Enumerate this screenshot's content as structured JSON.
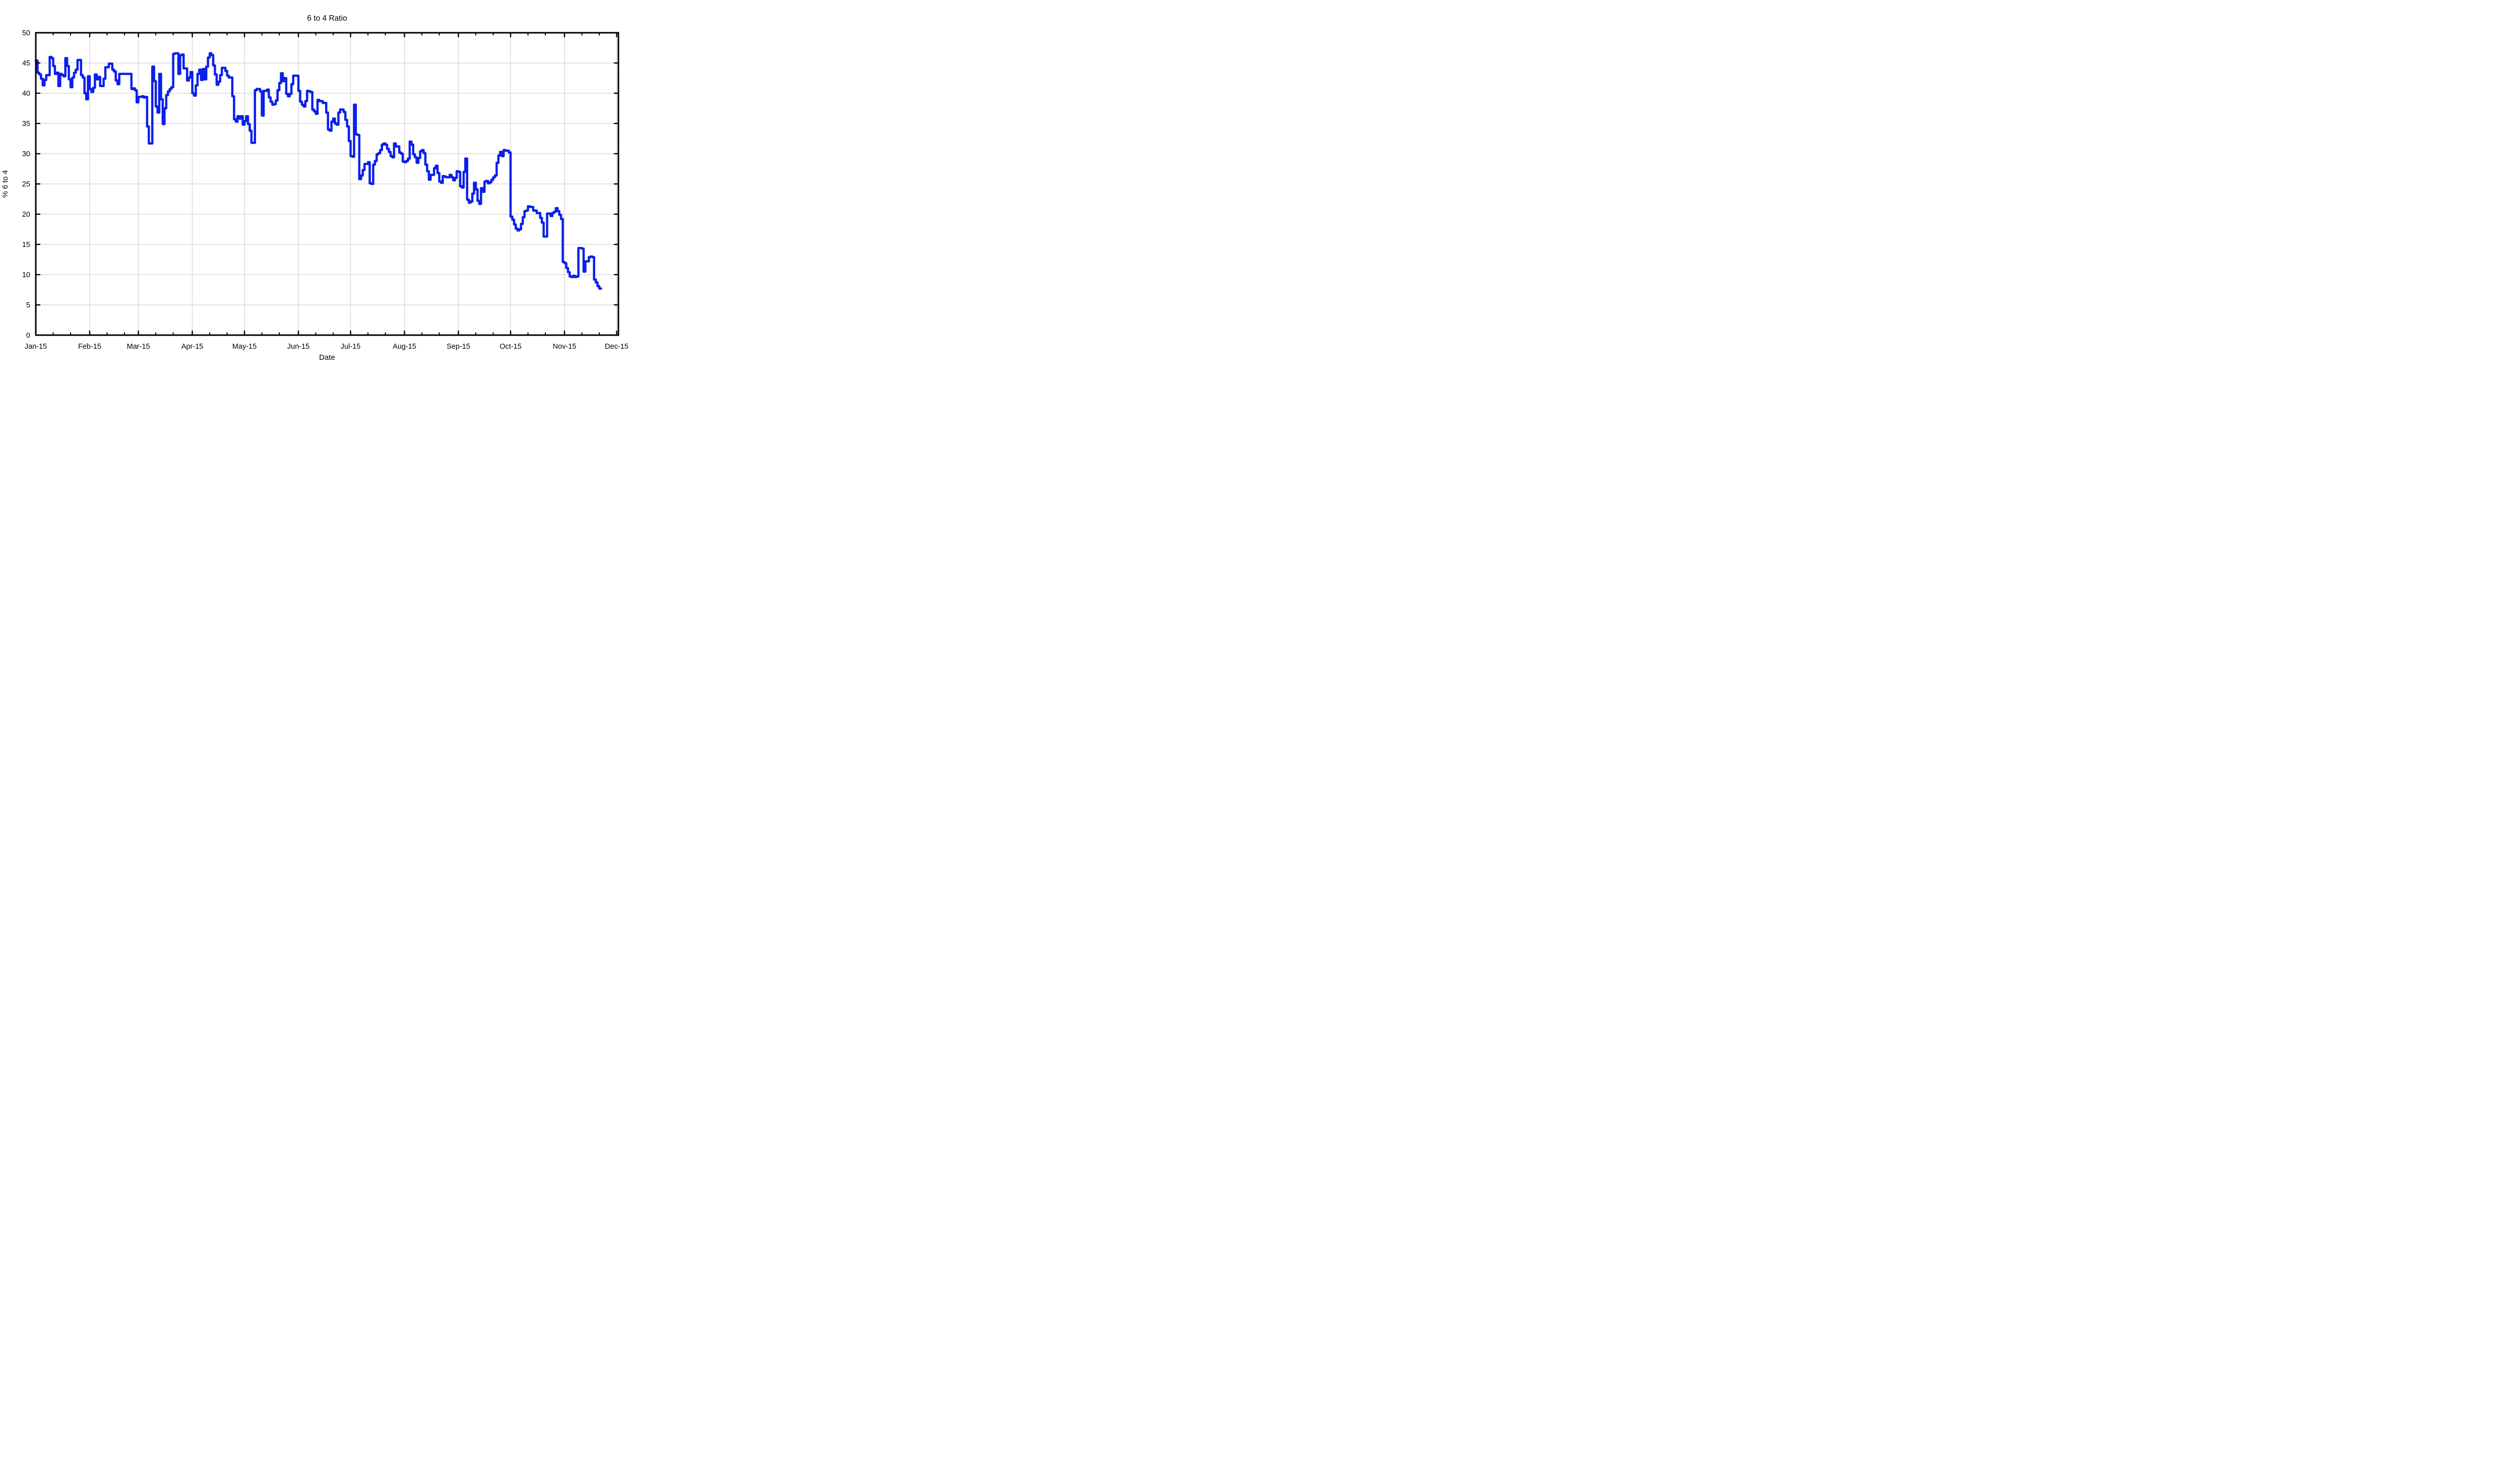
{
  "page": {
    "background": "#ffffff"
  },
  "chart": {
    "title": "6 to 4 Ratio",
    "xlabel": "Date",
    "ylabel": "% 6 to 4",
    "line_color": "#0b20ea",
    "grid_color": "#d8d8d8",
    "axis_color": "#000000",
    "y_tick_labels": [
      "0",
      "5",
      "10",
      "15",
      "20",
      "25",
      "30",
      "35",
      "40",
      "45",
      "50"
    ],
    "x_tick_labels": [
      "Jan-15",
      "Feb-15",
      "Mar-15",
      "Apr-15",
      "May-15",
      "Jun-15",
      "Jul-15",
      "Aug-15",
      "Sep-15",
      "Oct-15",
      "Nov-15",
      "Dec-15"
    ]
  },
  "chart_data": {
    "type": "line",
    "step_style": "post",
    "title": "6 to 4 Ratio",
    "xlabel": "Date",
    "ylabel": "% 6 to 4",
    "ylim": [
      0,
      50
    ],
    "y_ticks": [
      0,
      5,
      10,
      15,
      20,
      25,
      30,
      35,
      40,
      45,
      50
    ],
    "grid": "on",
    "legend_position": "none",
    "x_axis": {
      "tick_labels": [
        "Jan-15",
        "Feb-15",
        "Mar-15",
        "Apr-15",
        "May-15",
        "Jun-15",
        "Jul-15",
        "Aug-15",
        "Sep-15",
        "Oct-15",
        "Nov-15",
        "Dec-15"
      ],
      "month_start_day_indices": [
        0,
        31,
        59,
        90,
        120,
        151,
        181,
        212,
        243,
        273,
        304,
        334
      ],
      "minor_tick_day_offsets": [
        10,
        20
      ],
      "axis_day_span": 335
    },
    "series": [
      {
        "name": "% 6 to 4",
        "start_label": "Jan-15",
        "frequency": "daily",
        "values": [
          45.4,
          43.4,
          43.1,
          42.4,
          41.3,
          42.2,
          43.0,
          43.0,
          46.0,
          45.8,
          44.5,
          43.2,
          43.4,
          41.2,
          43.2,
          43.0,
          42.8,
          45.8,
          44.5,
          42.3,
          41.0,
          42.6,
          43.4,
          43.9,
          45.5,
          45.5,
          43.0,
          42.6,
          40.0,
          39.0,
          42.8,
          40.7,
          40.2,
          40.9,
          43.1,
          42.3,
          42.7,
          41.2,
          41.2,
          42.4,
          44.3,
          44.3,
          44.9,
          44.9,
          43.9,
          43.6,
          42.1,
          41.5,
          43.2,
          43.2,
          43.2,
          43.2,
          43.2,
          43.2,
          43.2,
          40.7,
          40.8,
          40.5,
          38.5,
          39.4,
          39.4,
          39.5,
          39.3,
          39.4,
          34.5,
          31.7,
          31.7,
          44.4,
          42.0,
          37.8,
          36.8,
          43.2,
          39.0,
          34.9,
          37.5,
          39.7,
          40.3,
          40.7,
          41.0,
          46.5,
          46.6,
          46.6,
          43.2,
          46.3,
          46.4,
          44.1,
          44.1,
          42.1,
          42.6,
          43.5,
          40.0,
          39.6,
          41.3,
          43.2,
          43.9,
          42.2,
          44.0,
          42.3,
          44.4,
          45.9,
          46.6,
          46.3,
          44.6,
          43.1,
          41.4,
          41.9,
          43.0,
          44.2,
          44.2,
          43.7,
          42.9,
          42.6,
          42.6,
          39.5,
          35.7,
          35.3,
          36.2,
          35.8,
          36.2,
          34.8,
          35.4,
          36.2,
          34.9,
          33.8,
          31.8,
          31.8,
          40.5,
          40.7,
          40.7,
          40.3,
          36.3,
          40.4,
          40.4,
          40.6,
          39.3,
          38.6,
          38.1,
          38.2,
          38.8,
          40.5,
          41.7,
          43.3,
          42.0,
          42.5,
          39.9,
          39.5,
          39.9,
          41.5,
          42.9,
          42.9,
          42.9,
          40.4,
          38.6,
          38.1,
          37.8,
          38.7,
          40.4,
          40.3,
          40.2,
          37.3,
          37.0,
          36.6,
          38.9,
          38.7,
          38.7,
          38.4,
          38.4,
          36.8,
          34.0,
          33.8,
          35.3,
          35.8,
          35.0,
          34.8,
          36.8,
          37.3,
          37.3,
          36.9,
          35.6,
          34.5,
          32.1,
          29.6,
          29.5,
          38.1,
          33.2,
          33.1,
          25.8,
          26.4,
          27.3,
          28.3,
          28.3,
          28.6,
          25.1,
          25.0,
          28.2,
          28.8,
          29.9,
          30.1,
          30.6,
          31.5,
          31.7,
          31.5,
          30.8,
          30.3,
          29.6,
          29.4,
          31.7,
          31.2,
          31.2,
          30.2,
          30.0,
          28.7,
          28.6,
          28.8,
          29.2,
          32.0,
          31.5,
          29.9,
          29.4,
          28.5,
          29.3,
          30.4,
          30.6,
          30.1,
          28.2,
          27.1,
          25.7,
          26.5,
          26.5,
          27.6,
          28.0,
          26.8,
          25.4,
          25.2,
          26.3,
          26.2,
          26.1,
          26.1,
          26.5,
          26.1,
          25.6,
          26.0,
          27.1,
          27.0,
          24.6,
          24.4,
          27.0,
          29.2,
          22.4,
          21.9,
          22.1,
          23.4,
          25.2,
          24.1,
          22.2,
          21.7,
          24.3,
          23.7,
          25.4,
          25.5,
          25.1,
          25.3,
          25.7,
          26.1,
          26.4,
          28.5,
          29.7,
          30.3,
          29.6,
          30.6,
          30.5,
          30.5,
          30.2,
          19.6,
          19.1,
          18.3,
          17.6,
          17.3,
          17.5,
          18.4,
          19.5,
          20.5,
          20.6,
          21.3,
          21.2,
          21.2,
          20.6,
          20.6,
          20.2,
          20.2,
          19.4,
          18.6,
          16.3,
          16.3,
          20.1,
          20.1,
          19.7,
          20.2,
          20.4,
          21.0,
          20.5,
          19.9,
          19.2,
          12.1,
          11.9,
          11.1,
          10.4,
          9.7,
          9.6,
          9.8,
          9.6,
          9.7,
          14.4,
          14.4,
          14.3,
          10.5,
          12.2,
          12.2,
          12.9,
          13.0,
          12.9,
          9.2,
          8.7,
          8.1,
          7.7
        ]
      }
    ]
  }
}
